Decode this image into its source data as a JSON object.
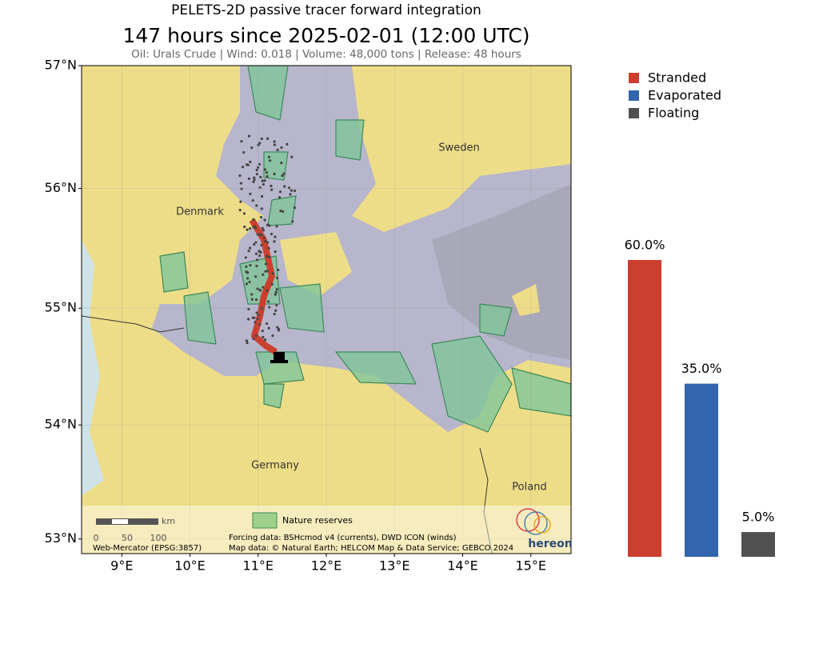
{
  "header": {
    "title": "PELETS-2D passive tracer forward integration",
    "subtitle": "147 hours since 2025-02-01 (12:00 UTC)",
    "info": "Oil: Urals Crude | Wind: 0.018 | Volume: 48,000 tons | Release: 48 hours"
  },
  "map": {
    "lonlim": [
      8.41,
      15.59
    ],
    "latlim": [
      52.87,
      57.0
    ],
    "lat_ticks": [
      {
        "value": 53,
        "label": "53°N"
      },
      {
        "value": 54,
        "label": "54°N"
      },
      {
        "value": 55,
        "label": "55°N"
      },
      {
        "value": 56,
        "label": "56°N"
      },
      {
        "value": 57,
        "label": "57°N"
      }
    ],
    "lon_ticks": [
      {
        "value": 9,
        "label": "9°E"
      },
      {
        "value": 10,
        "label": "10°E"
      },
      {
        "value": 11,
        "label": "11°E"
      },
      {
        "value": 12,
        "label": "12°E"
      },
      {
        "value": 13,
        "label": "13°E"
      },
      {
        "value": 14,
        "label": "14°E"
      },
      {
        "value": 15,
        "label": "15°E"
      }
    ],
    "places": [
      "Sweden",
      "Denmark",
      "Germany",
      "Poland"
    ],
    "legend": "Nature reserves",
    "scale": {
      "unit": "km",
      "labels": [
        "0",
        "50",
        "100"
      ]
    },
    "projection": "Web-Mercator (EPSG:3857)",
    "forcing": "Forcing data: BSHcmod v4 (currents), DWD ICON (winds)",
    "sources": "Map data: © Natural Earth; HELCOM Map & Data Service; GEBCO 2024",
    "logo": "hereon"
  },
  "chart_data": {
    "type": "bar",
    "categories": [
      "Stranded",
      "Evaporated",
      "Floating"
    ],
    "values": [
      60,
      35,
      5
    ],
    "value_labels": [
      "60.0%",
      "35.0%",
      "5.0%"
    ],
    "colors": [
      "#cc3f2e",
      "#3165ad",
      "#505050"
    ],
    "ylim": [
      0,
      60
    ]
  }
}
